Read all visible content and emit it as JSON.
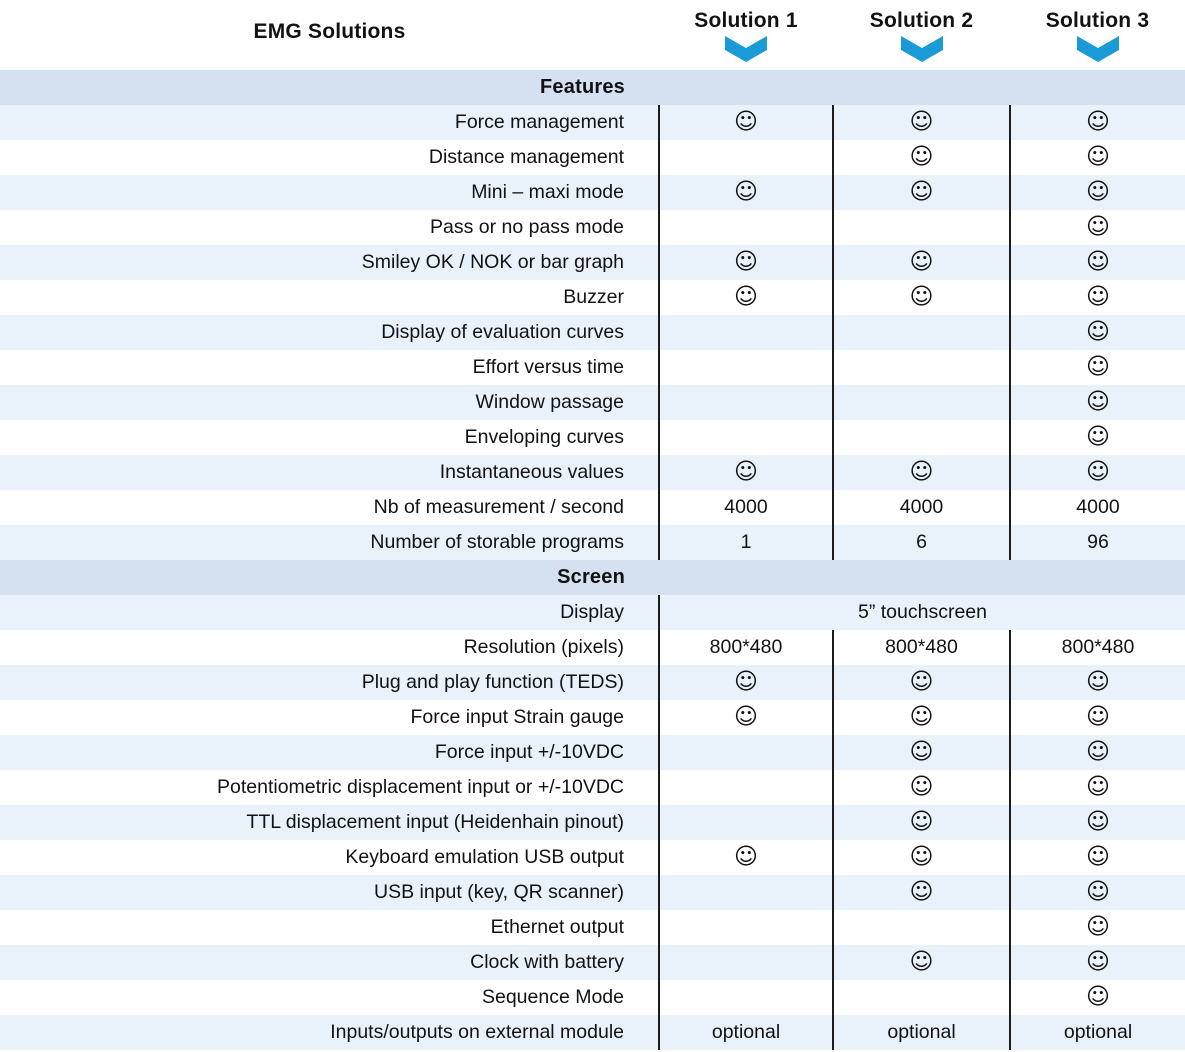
{
  "header": {
    "title": "EMG Solutions",
    "solutions": [
      "Solution 1",
      "Solution 2",
      "Solution 3"
    ]
  },
  "icons": {
    "available_symbol": "☺",
    "available_name": "smiley-ok-icon",
    "header_pointer": "chevron-down-icon"
  },
  "colors": {
    "accent_blue": "#1a9bd7",
    "section_header_bg": "#d5e0f0",
    "row_stripe_bg": "#e9f1fb",
    "divider": "#1c1c1c",
    "text": "#121212"
  },
  "table": {
    "sections": [
      {
        "title": "Features",
        "rows": [
          {
            "label": "Force management",
            "values": [
              "smiley",
              "smiley",
              "smiley"
            ]
          },
          {
            "label": "Distance management",
            "values": [
              "",
              "smiley",
              "smiley"
            ]
          },
          {
            "label": "Mini – maxi mode",
            "values": [
              "smiley",
              "smiley",
              "smiley"
            ]
          },
          {
            "label": "Pass or no pass mode",
            "values": [
              "",
              "",
              "smiley"
            ]
          },
          {
            "label": "Smiley OK / NOK or bar graph",
            "values": [
              "smiley",
              "smiley",
              "smiley"
            ]
          },
          {
            "label": "Buzzer",
            "values": [
              "smiley",
              "smiley",
              "smiley"
            ]
          },
          {
            "label": "Display of evaluation curves",
            "values": [
              "",
              "",
              "smiley"
            ]
          },
          {
            "label": "Effort versus time",
            "values": [
              "",
              "",
              "smiley"
            ]
          },
          {
            "label": "Window passage",
            "values": [
              "",
              "",
              "smiley"
            ]
          },
          {
            "label": "Enveloping curves",
            "values": [
              "",
              "",
              "smiley"
            ]
          },
          {
            "label": "Instantaneous values",
            "values": [
              "smiley",
              "smiley",
              "smiley"
            ]
          },
          {
            "label": "Nb of measurement / second",
            "values": [
              "4000",
              "4000",
              "4000"
            ]
          },
          {
            "label": "Number of storable programs",
            "values": [
              "1",
              "6",
              "96"
            ]
          }
        ]
      },
      {
        "title": "Screen",
        "rows": [
          {
            "label": "Display",
            "merged": "5” touchscreen"
          },
          {
            "label": "Resolution (pixels)",
            "values": [
              "800*480",
              "800*480",
              "800*480"
            ]
          },
          {
            "label": "Plug and play function (TEDS)",
            "values": [
              "smiley",
              "smiley",
              "smiley"
            ]
          },
          {
            "label": "Force input Strain gauge",
            "values": [
              "smiley",
              "smiley",
              "smiley"
            ]
          },
          {
            "label": "Force input +/-10VDC",
            "values": [
              "",
              "smiley",
              "smiley"
            ]
          },
          {
            "label": "Potentiometric displacement input or +/-10VDC",
            "values": [
              "",
              "smiley",
              "smiley"
            ]
          },
          {
            "label": "TTL displacement input (Heidenhain pinout)",
            "values": [
              "",
              "smiley",
              "smiley"
            ]
          },
          {
            "label": "Keyboard emulation USB output",
            "values": [
              "smiley",
              "smiley",
              "smiley"
            ]
          },
          {
            "label": "USB input (key, QR scanner)",
            "values": [
              "",
              "smiley",
              "smiley"
            ]
          },
          {
            "label": "Ethernet output",
            "values": [
              "",
              "",
              "smiley"
            ]
          },
          {
            "label": "Clock with battery",
            "values": [
              "",
              "smiley",
              "smiley"
            ]
          },
          {
            "label": "Sequence Mode",
            "values": [
              "",
              "",
              "smiley"
            ]
          },
          {
            "label": "Inputs/outputs on external module",
            "values": [
              "optional",
              "optional",
              "optional"
            ]
          }
        ]
      }
    ]
  }
}
